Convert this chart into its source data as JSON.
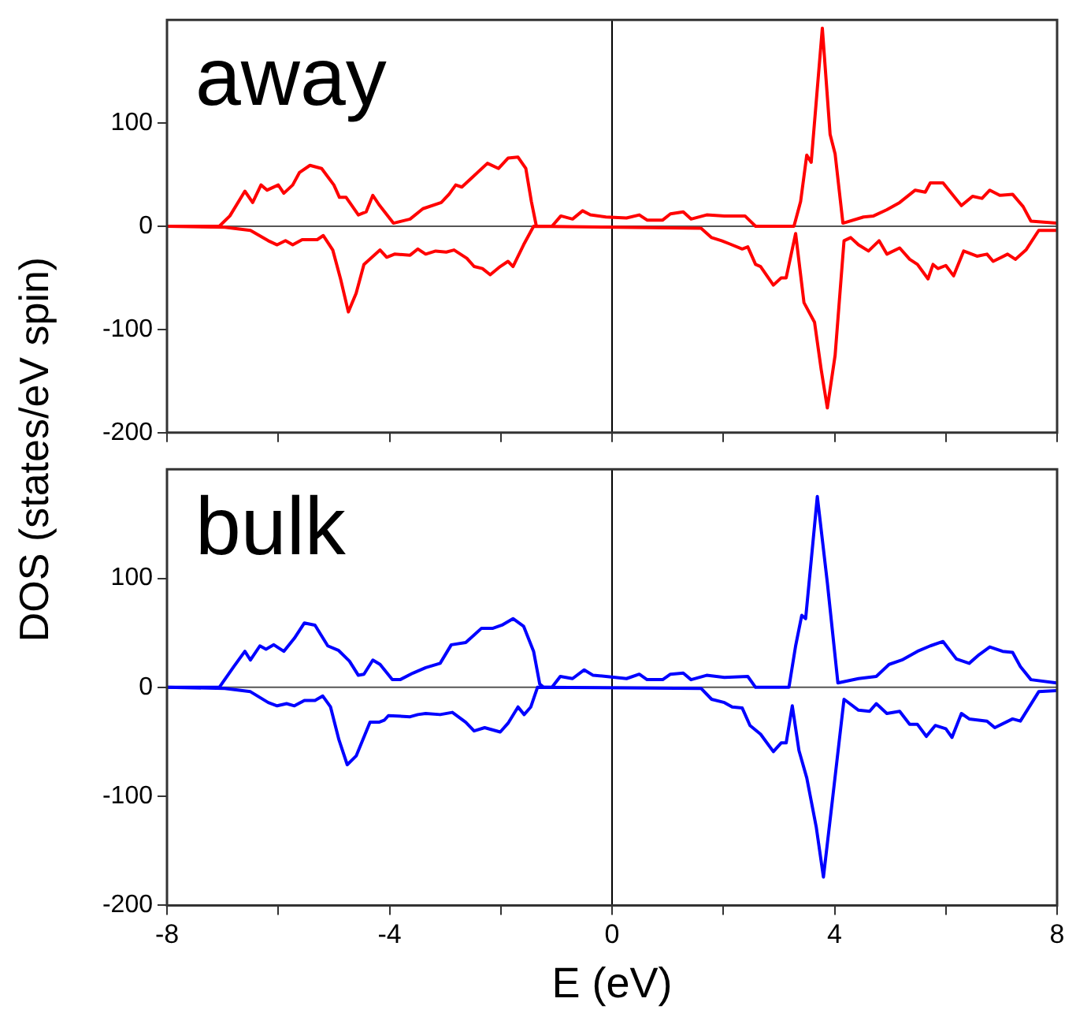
{
  "chart_data": [
    {
      "type": "line",
      "title": "away",
      "ylabel": "DOS (states/eV spin)",
      "marker": "none",
      "line_style": "solid",
      "grid": false,
      "legend": false,
      "tick_labels": "y",
      "xlim": [
        -8,
        8
      ],
      "xticks": [
        -8,
        {
          "value": -6,
          "label": null
        },
        -4,
        {
          "value": -2,
          "label": null
        },
        0,
        {
          "value": 2,
          "label": null
        },
        4,
        {
          "value": 6,
          "label": null
        },
        8
      ],
      "ylim": [
        -200,
        200
      ],
      "yticks": [
        -200,
        -100,
        0,
        100
      ],
      "ref_lines": [
        {
          "axis": "y",
          "value": 0,
          "color": "#555555"
        },
        {
          "axis": "x",
          "value": 0,
          "color": "#000000"
        }
      ],
      "series": [
        {
          "color": "#ff0000",
          "x": [
            -8,
            -7.06,
            -6.87,
            -6.6,
            -6.46,
            -6.31,
            -6.2,
            -6.0,
            -5.9,
            -5.74,
            -5.62,
            -5.43,
            -5.22,
            -5.0,
            -4.9,
            -4.78,
            -4.56,
            -4.42,
            -4.3,
            -4.19,
            -3.93,
            -3.63,
            -3.4,
            -3.07,
            -2.93,
            -2.81,
            -2.7,
            -2.52,
            -2.24,
            -2.04,
            -1.87,
            -1.69,
            -1.55,
            -1.45,
            -1.36,
            -1.08,
            -0.92,
            -0.71,
            -0.53,
            -0.39,
            -0.11,
            0.26,
            0.49,
            0.63,
            0.91,
            1.05,
            1.28,
            1.42,
            1.7,
            2.02,
            2.39,
            2.58,
            3.27,
            3.39,
            3.5,
            3.58,
            3.78,
            3.92,
            4.01,
            4.15,
            4.52,
            4.7,
            4.94,
            5.17,
            5.45,
            5.63,
            5.72,
            5.95,
            6.28,
            6.48,
            6.65,
            6.79,
            6.97,
            7.2,
            7.39,
            7.53,
            7.99
          ],
          "values": [
            0,
            0,
            10,
            34,
            23,
            40,
            35,
            40,
            32,
            40,
            52,
            59,
            56,
            40,
            28,
            28,
            11,
            14,
            30,
            21,
            3,
            7,
            17,
            23,
            31,
            40,
            38,
            47,
            61,
            56,
            66,
            67,
            56,
            24,
            0,
            0,
            10,
            7,
            15,
            11,
            9,
            8,
            11,
            6,
            6,
            12,
            14,
            7,
            11,
            10,
            10,
            0,
            0,
            24,
            69,
            62,
            192,
            89,
            70,
            3,
            9,
            10,
            16,
            23,
            35,
            33,
            42,
            42,
            20,
            29,
            27,
            35,
            30,
            31,
            19,
            5,
            3
          ]
        },
        {
          "color": "#ff0000",
          "x": [
            -8,
            -6.96,
            -6.5,
            -6.18,
            -6.02,
            -5.87,
            -5.74,
            -5.57,
            -5.3,
            -5.19,
            -5.02,
            -4.88,
            -4.74,
            -4.6,
            -4.46,
            -4.17,
            -4.05,
            -3.91,
            -3.63,
            -3.49,
            -3.35,
            -3.17,
            -2.98,
            -2.84,
            -2.61,
            -2.48,
            -2.33,
            -2.19,
            -2.01,
            -1.87,
            -1.78,
            -1.59,
            -1.41,
            1.6,
            1.79,
            1.97,
            2.11,
            2.34,
            2.44,
            2.58,
            2.67,
            2.9,
            3.04,
            3.13,
            3.3,
            3.45,
            3.64,
            3.76,
            3.87,
            4.01,
            4.17,
            4.29,
            4.43,
            4.61,
            4.8,
            4.94,
            5.17,
            5.35,
            5.49,
            5.68,
            5.77,
            5.86,
            6.0,
            6.14,
            6.32,
            6.56,
            6.74,
            6.85,
            7.11,
            7.25,
            7.44,
            7.67,
            7.99
          ],
          "values": [
            0,
            -1,
            -4,
            -14,
            -18,
            -14,
            -18,
            -13,
            -13,
            -9,
            -23,
            -51,
            -83,
            -65,
            -37,
            -23,
            -30,
            -27,
            -28,
            -22,
            -27,
            -24,
            -25,
            -23,
            -31,
            -39,
            -41,
            -47,
            -39,
            -34,
            -39,
            -18,
            0,
            -2,
            -11,
            -14,
            -17,
            -22,
            -20,
            -37,
            -39,
            -57,
            -50,
            -50,
            -7,
            -74,
            -93,
            -139,
            -176,
            -125,
            -14,
            -11,
            -18,
            -24,
            -14,
            -27,
            -21,
            -32,
            -37,
            -51,
            -37,
            -41,
            -38,
            -48,
            -24,
            -29,
            -27,
            -34,
            -27,
            -32,
            -23,
            -4,
            -4
          ]
        }
      ]
    },
    {
      "type": "line",
      "title": "bulk",
      "xlabel": "E (eV)",
      "marker": "none",
      "line_style": "solid",
      "grid": false,
      "legend": false,
      "xlim": [
        -8,
        8
      ],
      "xticks": [
        -8,
        {
          "value": -6,
          "label": null
        },
        -4,
        {
          "value": -2,
          "label": null
        },
        0,
        {
          "value": 2,
          "label": null
        },
        4,
        {
          "value": 6,
          "label": null
        },
        8
      ],
      "ylim": [
        -200,
        200
      ],
      "yticks": [
        -200,
        -100,
        0,
        100
      ],
      "ref_lines": [
        {
          "axis": "y",
          "value": 0,
          "color": "#555555"
        },
        {
          "axis": "x",
          "value": 0,
          "color": "#000000"
        }
      ],
      "series": [
        {
          "color": "#0000ff",
          "x": [
            -8,
            -7.06,
            -6.8,
            -6.6,
            -6.5,
            -6.33,
            -6.22,
            -6.08,
            -5.9,
            -5.71,
            -5.53,
            -5.34,
            -5.11,
            -4.92,
            -4.72,
            -4.56,
            -4.46,
            -4.3,
            -4.17,
            -3.95,
            -3.81,
            -3.58,
            -3.35,
            -3.09,
            -2.89,
            -2.63,
            -2.5,
            -2.35,
            -2.15,
            -1.98,
            -1.78,
            -1.59,
            -1.41,
            -1.3,
            -1.23,
            -1.08,
            -0.93,
            -0.71,
            -0.5,
            -0.34,
            -0.11,
            0.26,
            0.49,
            0.63,
            0.91,
            1.05,
            1.28,
            1.42,
            1.7,
            2.02,
            2.44,
            2.58,
            3.18,
            3.3,
            3.41,
            3.48,
            3.69,
            3.87,
            4.06,
            4.43,
            4.75,
            4.98,
            5.21,
            5.49,
            5.72,
            5.95,
            6.19,
            6.42,
            6.6,
            6.79,
            7.02,
            7.2,
            7.34,
            7.53,
            7.99
          ],
          "values": [
            0,
            0,
            19,
            33,
            25,
            38,
            35,
            39,
            33,
            45,
            59,
            57,
            38,
            34,
            24,
            11,
            12,
            25,
            21,
            7,
            7,
            13,
            18,
            22,
            39,
            41,
            47,
            54,
            54,
            57,
            63,
            56,
            33,
            3,
            0,
            0,
            10,
            8,
            16,
            11,
            10,
            8,
            12,
            7,
            7,
            12,
            13,
            7,
            11,
            9,
            10,
            0,
            0,
            38,
            66,
            63,
            175,
            96,
            4,
            8,
            10,
            21,
            25,
            33,
            38,
            42,
            26,
            22,
            30,
            37,
            33,
            32,
            19,
            7,
            4
          ]
        },
        {
          "color": "#0000ff",
          "x": [
            -8,
            -6.96,
            -6.5,
            -6.18,
            -6.02,
            -5.85,
            -5.71,
            -5.53,
            -5.34,
            -5.2,
            -5.06,
            -4.91,
            -4.76,
            -4.6,
            -4.35,
            -4.19,
            -4.09,
            -4.02,
            -3.63,
            -3.49,
            -3.35,
            -3.09,
            -2.87,
            -2.63,
            -2.48,
            -2.29,
            -2.01,
            -1.87,
            -1.69,
            -1.58,
            -1.46,
            -1.34,
            1.6,
            1.79,
            2.02,
            2.16,
            2.34,
            2.48,
            2.67,
            2.9,
            3.04,
            3.13,
            3.24,
            3.36,
            3.5,
            3.67,
            3.8,
            3.96,
            4.17,
            4.43,
            4.63,
            4.75,
            4.94,
            5.17,
            5.35,
            5.49,
            5.65,
            5.81,
            6.0,
            6.11,
            6.28,
            6.42,
            6.74,
            6.88,
            7.2,
            7.34,
            7.67,
            7.99
          ],
          "values": [
            0,
            -1,
            -4,
            -14,
            -17,
            -15,
            -17,
            -12,
            -12,
            -8,
            -18,
            -48,
            -71,
            -63,
            -32,
            -32,
            -30,
            -26,
            -27,
            -25,
            -24,
            -25,
            -23,
            -32,
            -40,
            -37,
            -41,
            -33,
            -18,
            -25,
            -18,
            0,
            -1,
            -11,
            -14,
            -18,
            -19,
            -35,
            -43,
            -59,
            -51,
            -51,
            -17,
            -58,
            -83,
            -128,
            -174,
            -104,
            -11,
            -21,
            -22,
            -15,
            -24,
            -22,
            -34,
            -34,
            -45,
            -35,
            -38,
            -46,
            -24,
            -29,
            -31,
            -37,
            -29,
            -31,
            -4,
            -3
          ]
        }
      ]
    }
  ]
}
